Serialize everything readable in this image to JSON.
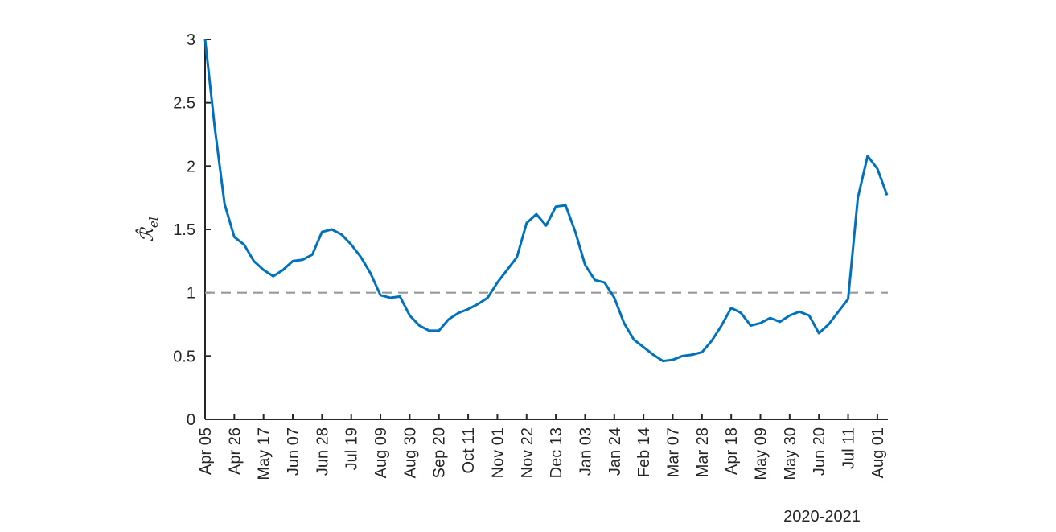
{
  "chart_data": {
    "type": "line",
    "ylabel": {
      "symbol": "ℛ̂",
      "subscript": "el"
    },
    "xlabel": "2020-2021",
    "categories": [
      "Apr 05",
      null,
      null,
      "Apr 26",
      null,
      null,
      "May 17",
      null,
      null,
      "Jun 07",
      null,
      null,
      "Jun 28",
      null,
      null,
      "Jul 19",
      null,
      null,
      "Aug 09",
      null,
      null,
      "Aug 30",
      null,
      null,
      "Sep 20",
      null,
      null,
      "Oct 11",
      null,
      null,
      "Nov 01",
      null,
      null,
      "Nov 22",
      null,
      null,
      "Dec 13",
      null,
      null,
      "Jan 03",
      null,
      null,
      "Jan 24",
      null,
      null,
      "Feb 14",
      null,
      null,
      "Mar 07",
      null,
      null,
      "Mar 28",
      null,
      null,
      "Apr 18",
      null,
      null,
      "May 09",
      null,
      null,
      "May 30",
      null,
      null,
      "Jun 20",
      null,
      null,
      "Jul 11",
      null,
      null,
      "Aug 01",
      null
    ],
    "series": [
      {
        "color": "#0072bd",
        "values": [
          3.0,
          2.3,
          1.7,
          1.44,
          1.38,
          1.25,
          1.18,
          1.13,
          1.18,
          1.25,
          1.26,
          1.3,
          1.48,
          1.5,
          1.46,
          1.38,
          1.28,
          1.15,
          0.98,
          0.96,
          0.97,
          0.82,
          0.74,
          0.7,
          0.7,
          0.79,
          0.84,
          0.87,
          0.91,
          0.96,
          1.08,
          1.18,
          1.28,
          1.55,
          1.62,
          1.53,
          1.68,
          1.69,
          1.48,
          1.22,
          1.1,
          1.08,
          0.96,
          0.76,
          0.63,
          0.57,
          0.51,
          0.46,
          0.47,
          0.5,
          0.51,
          0.53,
          0.62,
          0.74,
          0.88,
          0.84,
          0.74,
          0.76,
          0.8,
          0.77,
          0.82,
          0.85,
          0.82,
          0.68,
          0.75,
          0.85,
          0.95,
          1.75,
          2.08,
          1.98,
          1.77
        ]
      }
    ],
    "ylim": [
      0,
      3
    ],
    "yticks": [
      0,
      0.5,
      1,
      1.5,
      2,
      2.5,
      3
    ],
    "reference_line": {
      "value": 1,
      "color": "#999999"
    }
  }
}
